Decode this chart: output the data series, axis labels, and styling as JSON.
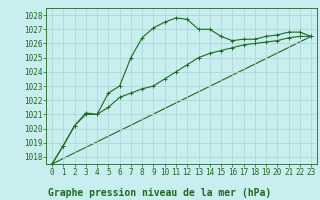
{
  "title": "Graphe pression niveau de la mer (hPa)",
  "background_color": "#c8eef0",
  "grid_color": "#b0d8d8",
  "line_color": "#1a6b1a",
  "xlim": [
    -0.5,
    23.5
  ],
  "ylim": [
    1017.5,
    1028.5
  ],
  "yticks": [
    1018,
    1019,
    1020,
    1021,
    1022,
    1023,
    1024,
    1025,
    1026,
    1027,
    1028
  ],
  "xtick_labels": [
    "0",
    "1",
    "2",
    "3",
    "4",
    "5",
    "6",
    "7",
    "8",
    "9",
    "10",
    "11",
    "12",
    "13",
    "14",
    "15",
    "16",
    "17",
    "18",
    "19",
    "20",
    "21",
    "22",
    "23"
  ],
  "xtick_vals": [
    0,
    1,
    2,
    3,
    4,
    5,
    6,
    7,
    8,
    9,
    10,
    11,
    12,
    13,
    14,
    15,
    16,
    17,
    18,
    19,
    20,
    21,
    22,
    23
  ],
  "series1_x": [
    0,
    1,
    2,
    3,
    4,
    5,
    6,
    7,
    8,
    9,
    10,
    11,
    12,
    13,
    14,
    15,
    16,
    17,
    18,
    19,
    20,
    21,
    22,
    23
  ],
  "series1_y": [
    1017.5,
    1018.8,
    1020.2,
    1021.1,
    1021.0,
    1022.5,
    1023.0,
    1025.0,
    1026.4,
    1027.1,
    1027.5,
    1027.8,
    1027.7,
    1027.0,
    1027.0,
    1026.5,
    1026.2,
    1026.3,
    1026.3,
    1026.5,
    1026.6,
    1026.8,
    1026.8,
    1026.5
  ],
  "series2_x": [
    0,
    1,
    2,
    3,
    4,
    5,
    6,
    7,
    8,
    9,
    10,
    11,
    12,
    13,
    14,
    15,
    16,
    17,
    18,
    19,
    20,
    21,
    22,
    23
  ],
  "series2_y": [
    1017.5,
    1018.8,
    1020.2,
    1021.0,
    1021.0,
    1021.5,
    1022.2,
    1022.5,
    1022.8,
    1023.0,
    1023.5,
    1024.0,
    1024.5,
    1025.0,
    1025.3,
    1025.5,
    1025.7,
    1025.9,
    1026.0,
    1026.1,
    1026.2,
    1026.4,
    1026.5,
    1026.5
  ],
  "series3_x": [
    0,
    23
  ],
  "series3_y": [
    1017.5,
    1026.5
  ],
  "tick_fontsize": 5.5,
  "xlabel_fontsize": 7,
  "marker_size": 2.5,
  "line_width": 0.8
}
